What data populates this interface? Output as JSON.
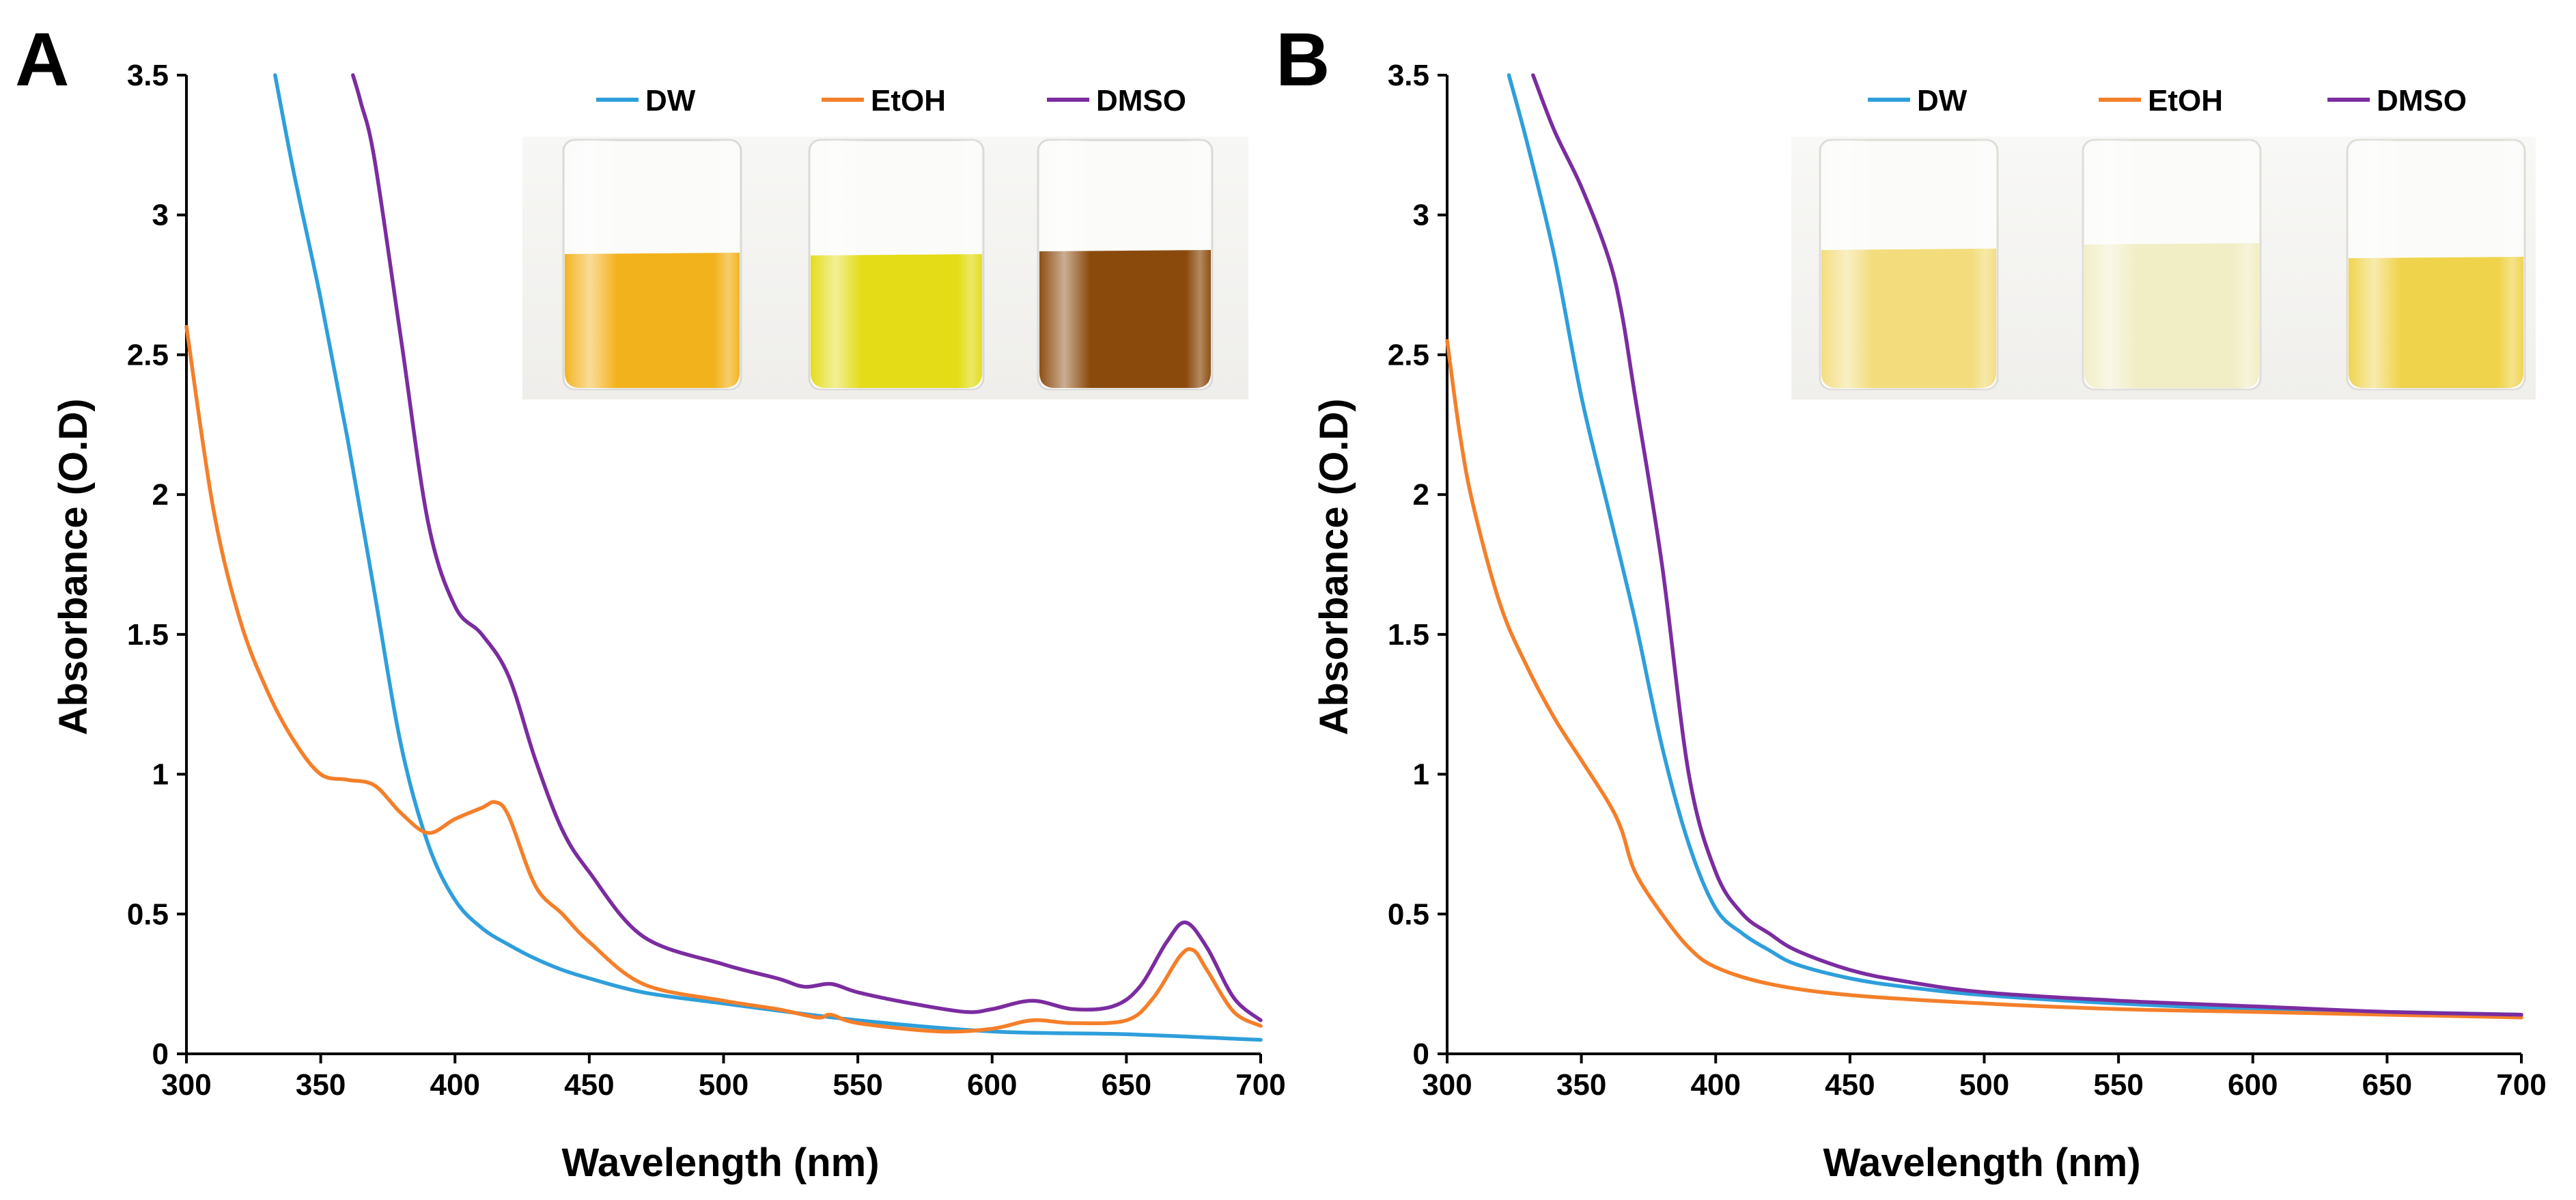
{
  "colors": {
    "DW": "#2e9fdb",
    "EtOH": "#f47f2a",
    "DMSO": "#7b2ca0"
  },
  "chart_data": [
    {
      "panel_label": "A",
      "type": "line",
      "title": "",
      "xlabel": "Wavelength (nm)",
      "ylabel": "Absorbance (O.D)",
      "xlim": [
        300,
        700
      ],
      "ylim": [
        0,
        3.5
      ],
      "xticks": [
        "300",
        "350",
        "400",
        "450",
        "500",
        "550",
        "600",
        "650",
        "700"
      ],
      "yticks": [
        "0",
        "0.5",
        "1",
        "1.5",
        "2",
        "2.5",
        "3",
        "3.5"
      ],
      "grid": false,
      "legend": "top-right",
      "inset_photo": {
        "vials": [
          "DW",
          "EtOH",
          "DMSO"
        ],
        "liquid_colors": [
          "#f2b21c",
          "#e3dc16",
          "#8a4a0c"
        ]
      },
      "series": [
        {
          "name": "DW",
          "x": [
            333,
            340,
            350,
            360,
            370,
            380,
            390,
            400,
            410,
            420,
            430,
            440,
            450,
            470,
            500,
            550,
            600,
            650,
            700
          ],
          "y": [
            3.5,
            3.15,
            2.7,
            2.2,
            1.65,
            1.1,
            0.75,
            0.55,
            0.45,
            0.39,
            0.34,
            0.3,
            0.27,
            0.22,
            0.18,
            0.12,
            0.08,
            0.07,
            0.05
          ]
        },
        {
          "name": "EtOH",
          "x": [
            300,
            310,
            320,
            330,
            340,
            350,
            360,
            370,
            380,
            390,
            400,
            410,
            415,
            420,
            430,
            440,
            450,
            470,
            500,
            520,
            535,
            540,
            550,
            580,
            600,
            615,
            630,
            650,
            660,
            670,
            675,
            680,
            690,
            700
          ],
          "y": [
            2.6,
            1.95,
            1.55,
            1.3,
            1.12,
            1.0,
            0.98,
            0.96,
            0.86,
            0.79,
            0.84,
            0.88,
            0.9,
            0.85,
            0.6,
            0.5,
            0.4,
            0.25,
            0.19,
            0.16,
            0.13,
            0.14,
            0.11,
            0.08,
            0.09,
            0.12,
            0.11,
            0.12,
            0.2,
            0.35,
            0.37,
            0.3,
            0.15,
            0.1
          ]
        },
        {
          "name": "DMSO",
          "x": [
            362,
            365,
            370,
            380,
            390,
            400,
            410,
            420,
            430,
            440,
            450,
            470,
            500,
            520,
            530,
            540,
            550,
            570,
            590,
            600,
            615,
            630,
            645,
            655,
            665,
            672,
            680,
            690,
            700
          ],
          "y": [
            3.5,
            3.4,
            3.2,
            2.55,
            1.9,
            1.6,
            1.5,
            1.35,
            1.05,
            0.8,
            0.65,
            0.42,
            0.32,
            0.27,
            0.24,
            0.25,
            0.22,
            0.18,
            0.15,
            0.16,
            0.19,
            0.16,
            0.17,
            0.24,
            0.4,
            0.47,
            0.38,
            0.2,
            0.12
          ]
        }
      ]
    },
    {
      "panel_label": "B",
      "type": "line",
      "title": "",
      "xlabel": "Wavelength (nm)",
      "ylabel": "Absorbance (O.D)",
      "xlim": [
        300,
        700
      ],
      "ylim": [
        0,
        3.5
      ],
      "xticks": [
        "300",
        "350",
        "400",
        "450",
        "500",
        "550",
        "600",
        "650",
        "700"
      ],
      "yticks": [
        "0",
        "0.5",
        "1",
        "1.5",
        "2",
        "2.5",
        "3",
        "3.5"
      ],
      "grid": false,
      "legend": "top-right",
      "inset_photo": {
        "vials": [
          "DW",
          "EtOH",
          "DMSO"
        ],
        "liquid_colors": [
          "#f3dc7c",
          "#f1eec6",
          "#efd34a"
        ]
      },
      "series": [
        {
          "name": "DW",
          "x": [
            323,
            330,
            340,
            350,
            360,
            370,
            380,
            390,
            400,
            410,
            420,
            430,
            450,
            470,
            500,
            550,
            600,
            650,
            700
          ],
          "y": [
            3.5,
            3.25,
            2.85,
            2.35,
            1.95,
            1.55,
            1.1,
            0.75,
            0.52,
            0.43,
            0.37,
            0.32,
            0.27,
            0.24,
            0.21,
            0.18,
            0.16,
            0.15,
            0.14
          ]
        },
        {
          "name": "EtOH",
          "x": [
            300,
            305,
            310,
            320,
            330,
            340,
            350,
            360,
            365,
            370,
            380,
            390,
            400,
            420,
            450,
            500,
            550,
            600,
            650,
            700
          ],
          "y": [
            2.55,
            2.2,
            1.95,
            1.6,
            1.38,
            1.2,
            1.05,
            0.9,
            0.8,
            0.65,
            0.5,
            0.38,
            0.31,
            0.25,
            0.21,
            0.18,
            0.16,
            0.15,
            0.14,
            0.13
          ]
        },
        {
          "name": "DMSO",
          "x": [
            332,
            340,
            350,
            360,
            365,
            370,
            380,
            390,
            400,
            410,
            420,
            430,
            450,
            470,
            500,
            550,
            600,
            650,
            700
          ],
          "y": [
            3.5,
            3.3,
            3.1,
            2.85,
            2.65,
            2.35,
            1.75,
            1.0,
            0.65,
            0.5,
            0.43,
            0.37,
            0.3,
            0.26,
            0.22,
            0.19,
            0.17,
            0.15,
            0.14
          ]
        }
      ]
    }
  ]
}
